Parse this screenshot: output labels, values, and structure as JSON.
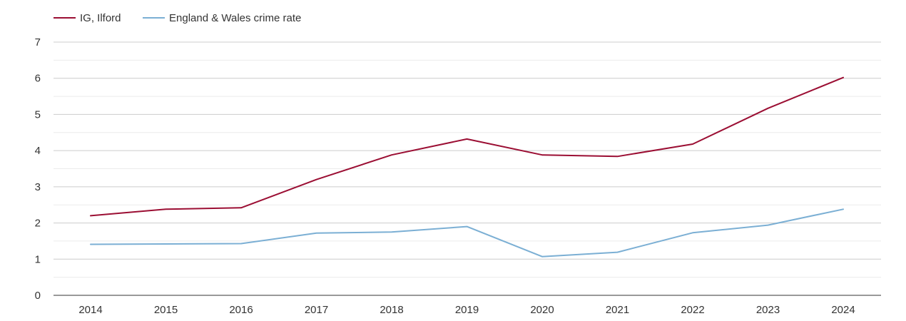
{
  "chart_data": {
    "type": "line",
    "title": "",
    "xlabel": "",
    "ylabel": "",
    "x": [
      "2014",
      "2015",
      "2016",
      "2017",
      "2018",
      "2019",
      "2020",
      "2021",
      "2022",
      "2023",
      "2024"
    ],
    "ylim": [
      0,
      7
    ],
    "yticks": [
      "0",
      "1",
      "2",
      "3",
      "4",
      "5",
      "6",
      "7"
    ],
    "grid": true,
    "legend_position": "top-left",
    "series": [
      {
        "name": "IG, Ilford",
        "color": "#9b0e33",
        "values": [
          2.2,
          2.38,
          2.42,
          3.2,
          3.88,
          4.32,
          3.88,
          3.84,
          4.18,
          5.17,
          6.02
        ]
      },
      {
        "name": "England & Wales crime rate",
        "color": "#7bafd4",
        "values": [
          1.41,
          1.42,
          1.43,
          1.72,
          1.75,
          1.9,
          1.07,
          1.19,
          1.73,
          1.94,
          2.38
        ]
      }
    ]
  }
}
